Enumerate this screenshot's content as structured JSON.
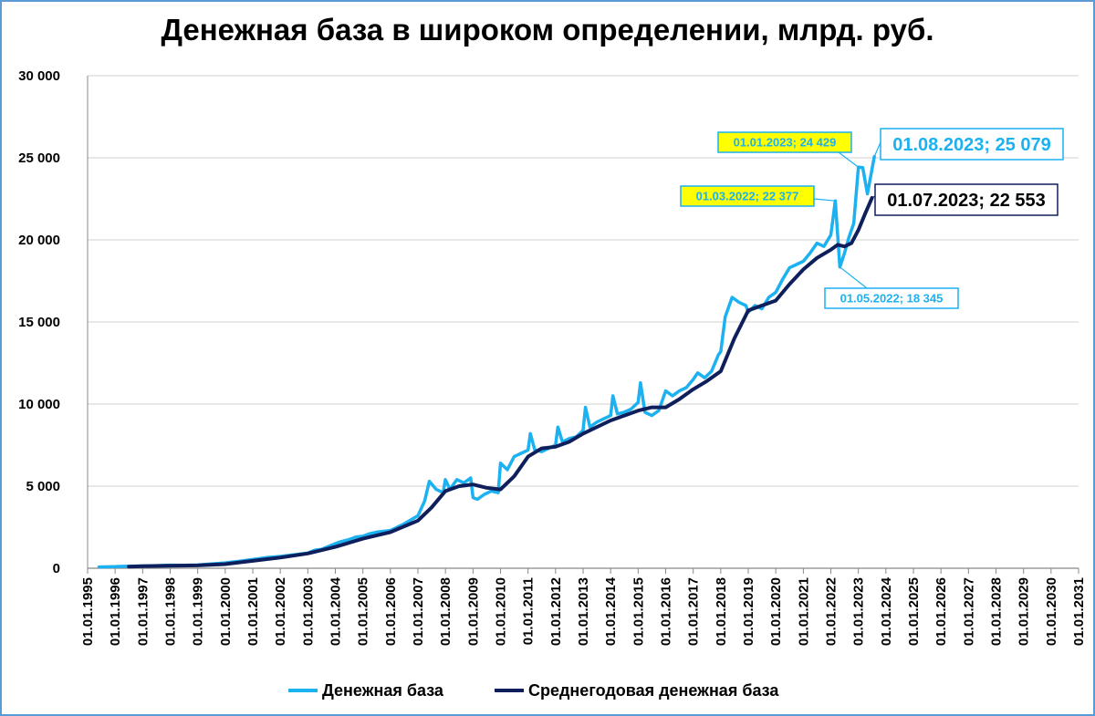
{
  "colors": {
    "base": "#1cb1f0",
    "average": "#0f1f5c",
    "callout_fill_yellow": "#ffff00",
    "grid": "#d0d0d0"
  },
  "chart_data": {
    "type": "line",
    "title": "Денежная база в широком определении, млрд. руб.",
    "xlabel": "",
    "ylabel": "",
    "ylim": [
      0,
      30000
    ],
    "xlim": [
      "1995-01-01",
      "2031-01-01"
    ],
    "grid": true,
    "legend_position": "bottom",
    "yticks": [
      "0",
      "5 000",
      "10 000",
      "15 000",
      "20 000",
      "25 000",
      "30 000"
    ],
    "xticks": [
      "01.01.1995",
      "01.01.1996",
      "01.01.1997",
      "01.01.1998",
      "01.01.1999",
      "01.01.2000",
      "01.01.2001",
      "01.01.2002",
      "01.01.2003",
      "01.01.2004",
      "01.01.2005",
      "01.01.2006",
      "01.01.2007",
      "01.01.2008",
      "01.01.2009",
      "01.01.2010",
      "01.01.2011",
      "01.01.2012",
      "01.01.2013",
      "01.01.2014",
      "01.01.2015",
      "01.01.2016",
      "01.01.2017",
      "01.01.2018",
      "01.01.2019",
      "01.01.2020",
      "01.01.2021",
      "01.01.2022",
      "01.01.2023",
      "01.01.2024",
      "01.01.2025",
      "01.01.2026",
      "01.01.2027",
      "01.01.2028",
      "01.01.2029",
      "01.01.2030",
      "01.01.2031"
    ],
    "series": [
      {
        "name": "Денежная база",
        "color": "#1cb1f0",
        "points": [
          [
            "1995-06-01",
            80
          ],
          [
            "1996-01-01",
            100
          ],
          [
            "1996-07-01",
            120
          ],
          [
            "1997-01-01",
            140
          ],
          [
            "1997-07-01",
            160
          ],
          [
            "1998-01-01",
            190
          ],
          [
            "1998-07-01",
            180
          ],
          [
            "1999-01-01",
            200
          ],
          [
            "1999-07-01",
            260
          ],
          [
            "2000-01-01",
            330
          ],
          [
            "2000-07-01",
            420
          ],
          [
            "2001-01-01",
            540
          ],
          [
            "2001-07-01",
            650
          ],
          [
            "2002-01-01",
            720
          ],
          [
            "2002-07-01",
            820
          ],
          [
            "2003-01-01",
            920
          ],
          [
            "2003-04-01",
            1100
          ],
          [
            "2003-07-01",
            1150
          ],
          [
            "2004-01-01",
            1500
          ],
          [
            "2004-03-01",
            1600
          ],
          [
            "2004-07-01",
            1750
          ],
          [
            "2004-10-01",
            1900
          ],
          [
            "2005-01-01",
            1950
          ],
          [
            "2005-04-01",
            2100
          ],
          [
            "2005-07-01",
            2200
          ],
          [
            "2006-01-01",
            2300
          ],
          [
            "2006-07-01",
            2700
          ],
          [
            "2007-01-01",
            3200
          ],
          [
            "2007-04-01",
            4100
          ],
          [
            "2007-06-01",
            5300
          ],
          [
            "2007-09-01",
            4800
          ],
          [
            "2007-12-01",
            4600
          ],
          [
            "2008-01-01",
            5400
          ],
          [
            "2008-03-01",
            4800
          ],
          [
            "2008-06-01",
            5400
          ],
          [
            "2008-09-01",
            5200
          ],
          [
            "2008-12-01",
            5500
          ],
          [
            "2009-01-01",
            4300
          ],
          [
            "2009-03-01",
            4200
          ],
          [
            "2009-06-01",
            4500
          ],
          [
            "2009-09-01",
            4700
          ],
          [
            "2009-12-01",
            4600
          ],
          [
            "2010-01-01",
            6400
          ],
          [
            "2010-04-01",
            6000
          ],
          [
            "2010-07-01",
            6800
          ],
          [
            "2010-10-01",
            7000
          ],
          [
            "2011-01-01",
            7200
          ],
          [
            "2011-02-01",
            8200
          ],
          [
            "2011-04-01",
            7200
          ],
          [
            "2011-07-01",
            7100
          ],
          [
            "2011-10-01",
            7300
          ],
          [
            "2012-01-01",
            7500
          ],
          [
            "2012-02-01",
            8600
          ],
          [
            "2012-04-01",
            7700
          ],
          [
            "2012-07-01",
            7900
          ],
          [
            "2012-10-01",
            8000
          ],
          [
            "2013-01-01",
            8400
          ],
          [
            "2013-02-01",
            9800
          ],
          [
            "2013-04-01",
            8600
          ],
          [
            "2013-07-01",
            8900
          ],
          [
            "2013-10-01",
            9100
          ],
          [
            "2014-01-01",
            9300
          ],
          [
            "2014-02-01",
            10500
          ],
          [
            "2014-04-01",
            9400
          ],
          [
            "2014-07-01",
            9500
          ],
          [
            "2014-10-01",
            9700
          ],
          [
            "2015-01-01",
            10100
          ],
          [
            "2015-02-01",
            11300
          ],
          [
            "2015-04-01",
            9500
          ],
          [
            "2015-07-01",
            9300
          ],
          [
            "2015-10-01",
            9600
          ],
          [
            "2016-01-01",
            10800
          ],
          [
            "2016-04-01",
            10500
          ],
          [
            "2016-07-01",
            10800
          ],
          [
            "2016-10-01",
            11000
          ],
          [
            "2017-01-01",
            11500
          ],
          [
            "2017-03-01",
            11900
          ],
          [
            "2017-06-01",
            11600
          ],
          [
            "2017-09-01",
            12000
          ],
          [
            "2017-12-01",
            13000
          ],
          [
            "2018-01-01",
            13200
          ],
          [
            "2018-03-01",
            15300
          ],
          [
            "2018-06-01",
            16500
          ],
          [
            "2018-09-01",
            16200
          ],
          [
            "2018-12-01",
            16000
          ],
          [
            "2019-01-01",
            15600
          ],
          [
            "2019-04-01",
            16000
          ],
          [
            "2019-07-01",
            15800
          ],
          [
            "2019-10-01",
            16500
          ],
          [
            "2020-01-01",
            16800
          ],
          [
            "2020-04-01",
            17600
          ],
          [
            "2020-07-01",
            18300
          ],
          [
            "2020-10-01",
            18500
          ],
          [
            "2021-01-01",
            18700
          ],
          [
            "2021-04-01",
            19200
          ],
          [
            "2021-07-01",
            19800
          ],
          [
            "2021-10-01",
            19600
          ],
          [
            "2022-01-01",
            20300
          ],
          [
            "2022-03-01",
            22377
          ],
          [
            "2022-05-01",
            18345
          ],
          [
            "2022-07-01",
            19200
          ],
          [
            "2022-09-01",
            20200
          ],
          [
            "2022-11-01",
            21000
          ],
          [
            "2023-01-01",
            24429
          ],
          [
            "2023-03-01",
            24400
          ],
          [
            "2023-05-01",
            22800
          ],
          [
            "2023-08-01",
            25079
          ]
        ]
      },
      {
        "name": "Среднегодовая денежная база",
        "color": "#0f1f5c",
        "points": [
          [
            "1996-07-01",
            100
          ],
          [
            "1997-01-01",
            120
          ],
          [
            "1998-01-01",
            150
          ],
          [
            "1999-01-01",
            170
          ],
          [
            "2000-01-01",
            250
          ],
          [
            "2001-01-01",
            450
          ],
          [
            "2002-01-01",
            650
          ],
          [
            "2003-01-01",
            900
          ],
          [
            "2004-01-01",
            1300
          ],
          [
            "2005-01-01",
            1800
          ],
          [
            "2006-01-01",
            2200
          ],
          [
            "2007-01-01",
            2900
          ],
          [
            "2007-07-01",
            3700
          ],
          [
            "2008-01-01",
            4700
          ],
          [
            "2008-07-01",
            5000
          ],
          [
            "2009-01-01",
            5100
          ],
          [
            "2009-07-01",
            4900
          ],
          [
            "2010-01-01",
            4800
          ],
          [
            "2010-07-01",
            5600
          ],
          [
            "2011-01-01",
            6800
          ],
          [
            "2011-07-01",
            7300
          ],
          [
            "2012-01-01",
            7400
          ],
          [
            "2012-07-01",
            7700
          ],
          [
            "2013-01-01",
            8200
          ],
          [
            "2014-01-01",
            9000
          ],
          [
            "2015-01-01",
            9600
          ],
          [
            "2015-07-01",
            9800
          ],
          [
            "2016-01-01",
            9800
          ],
          [
            "2016-07-01",
            10300
          ],
          [
            "2017-01-01",
            10900
          ],
          [
            "2017-07-01",
            11400
          ],
          [
            "2018-01-01",
            12000
          ],
          [
            "2018-07-01",
            14000
          ],
          [
            "2019-01-01",
            15700
          ],
          [
            "2019-07-01",
            16000
          ],
          [
            "2020-01-01",
            16300
          ],
          [
            "2020-07-01",
            17300
          ],
          [
            "2021-01-01",
            18200
          ],
          [
            "2021-07-01",
            18900
          ],
          [
            "2022-01-01",
            19400
          ],
          [
            "2022-04-01",
            19700
          ],
          [
            "2022-07-01",
            19600
          ],
          [
            "2022-10-01",
            19800
          ],
          [
            "2023-01-01",
            20600
          ],
          [
            "2023-04-01",
            21600
          ],
          [
            "2023-07-01",
            22553
          ]
        ]
      }
    ],
    "annotations": [
      {
        "label": "01.08.2023;  25 079",
        "series": 0,
        "point": [
          "2023-08-01",
          25079
        ]
      },
      {
        "label": "01.07.2023;  22 553",
        "series": 1,
        "point": [
          "2023-07-01",
          22553
        ]
      },
      {
        "label": "01.01.2023;  24 429",
        "series": 0,
        "point": [
          "2023-01-01",
          24429
        ]
      },
      {
        "label": "01.03.2022;  22 377",
        "series": 0,
        "point": [
          "2022-03-01",
          22377
        ]
      },
      {
        "label": "01.05.2022;  18 345",
        "series": 0,
        "point": [
          "2022-05-01",
          18345
        ]
      }
    ]
  }
}
